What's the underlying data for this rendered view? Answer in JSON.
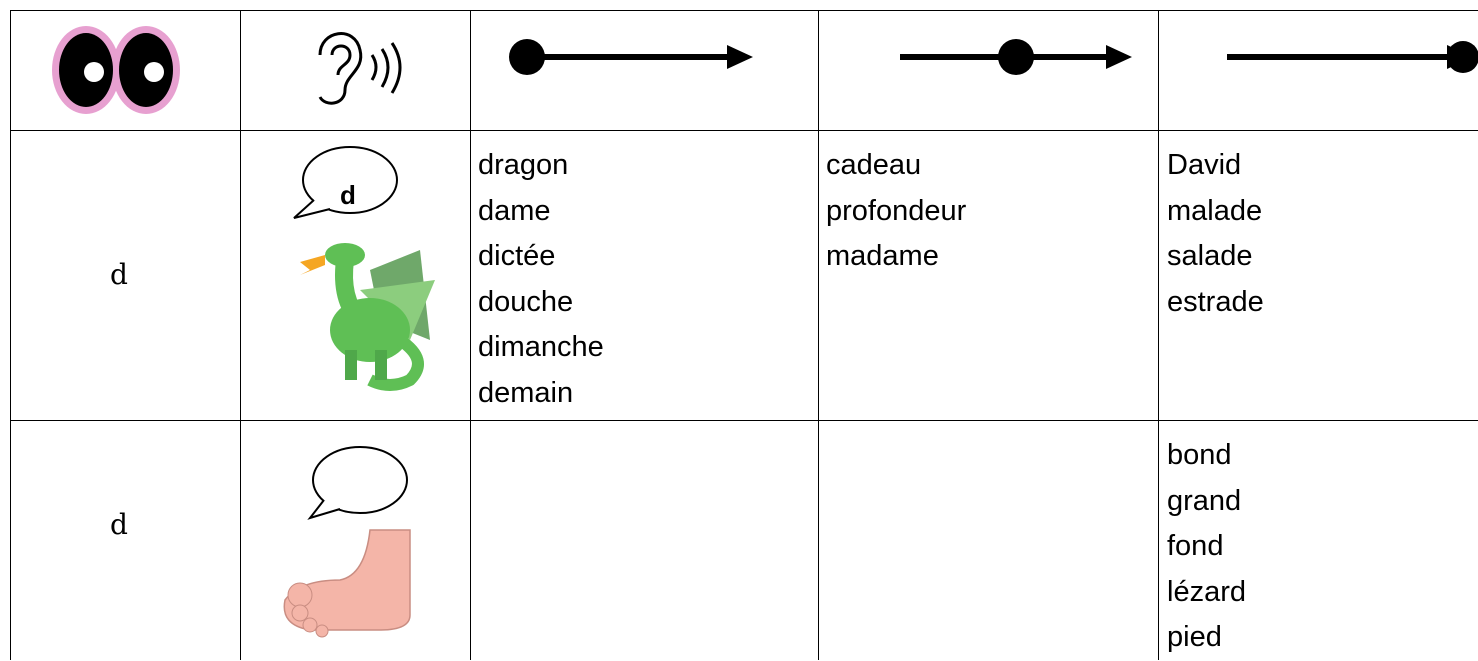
{
  "table": {
    "rows": [
      {
        "letter": "d",
        "bubble": "d",
        "start": [
          "dragon",
          "dame",
          "dictée",
          "douche",
          "dimanche",
          "demain"
        ],
        "middle": [
          "cadeau",
          "profondeur",
          "madame"
        ],
        "end": [
          "David",
          "malade",
          "salade",
          "estrade"
        ]
      },
      {
        "letter": "d",
        "end": [
          "bond",
          "grand",
          "fond",
          "lézard",
          "pied"
        ]
      }
    ]
  }
}
